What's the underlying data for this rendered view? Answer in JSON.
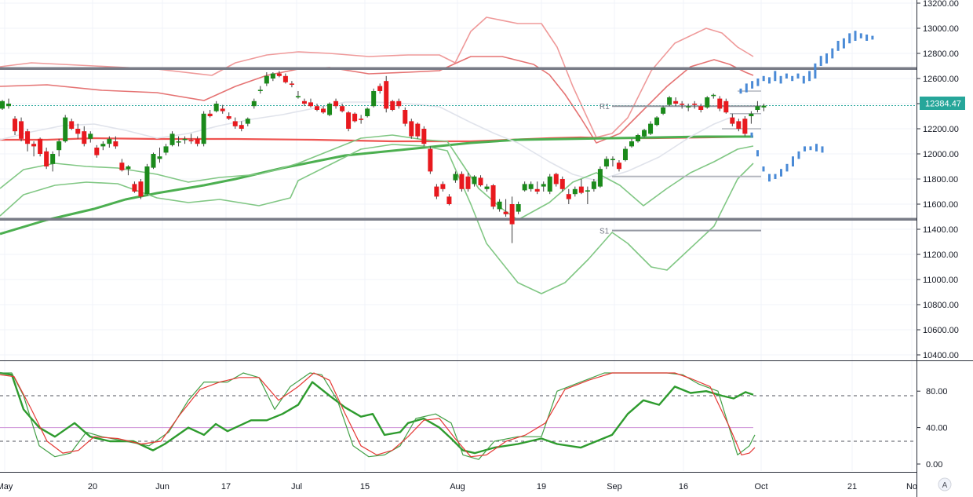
{
  "chart_data": {
    "type": "candlestick",
    "price_axis": {
      "min": 10400,
      "max": 13200,
      "ticks": [
        13200,
        13000,
        12800,
        12600,
        12400,
        12200,
        12000,
        11800,
        11600,
        11400,
        11200,
        11000,
        10800,
        10600,
        10400
      ]
    },
    "oscillator_axis": {
      "min": 0,
      "max": 100,
      "ticks": [
        80,
        40,
        0
      ],
      "upper_band": 75,
      "mid_line": 40,
      "lower_band": 25
    },
    "x_labels": [
      "May",
      "20",
      "Jun",
      "17",
      "Jul",
      "15",
      "Aug",
      "19",
      "Sep",
      "16",
      "Oct",
      "21",
      "No"
    ],
    "last_price": "12384.47",
    "horizontal_levels": [
      12680,
      11480
    ],
    "pivot_levels": [
      {
        "label": "R1",
        "value": 12380
      },
      {
        "label": "S1",
        "value": 11390
      }
    ],
    "candles": [
      [
        12360,
        12430,
        12350,
        12420
      ],
      [
        12380,
        12440,
        12360,
        12400
      ],
      [
        12280,
        12300,
        12150,
        12180
      ],
      [
        12260,
        12290,
        12100,
        12120
      ],
      [
        12180,
        12200,
        12020,
        12080
      ],
      [
        12080,
        12100,
        11980,
        12060
      ],
      [
        12120,
        12130,
        11980,
        12000
      ],
      [
        12020,
        12050,
        11880,
        11900
      ],
      [
        11920,
        12020,
        11860,
        12000
      ],
      [
        12030,
        12120,
        11980,
        12100
      ],
      [
        12100,
        12310,
        12090,
        12290
      ],
      [
        12260,
        12280,
        12190,
        12200
      ],
      [
        12200,
        12240,
        12120,
        12160
      ],
      [
        12180,
        12220,
        12060,
        12080
      ],
      [
        12120,
        12180,
        12090,
        12160
      ],
      [
        12050,
        12070,
        11970,
        11990
      ],
      [
        12060,
        12100,
        12030,
        12080
      ],
      [
        12080,
        12140,
        12050,
        12120
      ],
      [
        12100,
        12140,
        12040,
        12060
      ],
      [
        11930,
        11960,
        11860,
        11870
      ],
      [
        11880,
        11910,
        11830,
        11900
      ],
      [
        11760,
        11780,
        11690,
        11700
      ],
      [
        11780,
        11800,
        11640,
        11660
      ],
      [
        11680,
        11920,
        11670,
        11900
      ],
      [
        11890,
        12010,
        11880,
        12000
      ],
      [
        11960,
        12050,
        11930,
        11980
      ],
      [
        12010,
        12080,
        11990,
        12060
      ],
      [
        12070,
        12180,
        12060,
        12160
      ],
      [
        12090,
        12140,
        12060,
        12100
      ],
      [
        12110,
        12140,
        12080,
        12120
      ],
      [
        12110,
        12160,
        12080,
        12100
      ],
      [
        12120,
        12140,
        12060,
        12080
      ],
      [
        12080,
        12340,
        12060,
        12320
      ],
      [
        12320,
        12350,
        12290,
        12300
      ],
      [
        12340,
        12420,
        12330,
        12400
      ],
      [
        12360,
        12390,
        12320,
        12340
      ],
      [
        12300,
        12330,
        12270,
        12280
      ],
      [
        12260,
        12290,
        12200,
        12220
      ],
      [
        12230,
        12260,
        12180,
        12200
      ],
      [
        12240,
        12290,
        12220,
        12280
      ],
      [
        12380,
        12440,
        12360,
        12420
      ],
      [
        12500,
        12540,
        12480,
        12510
      ],
      [
        12560,
        12650,
        12540,
        12620
      ],
      [
        12600,
        12650,
        12580,
        12640
      ],
      [
        12640,
        12660,
        12610,
        12620
      ],
      [
        12620,
        12640,
        12560,
        12570
      ],
      [
        12560,
        12580,
        12530,
        12550
      ],
      [
        12450,
        12500,
        12440,
        12460
      ],
      [
        12420,
        12440,
        12380,
        12400
      ],
      [
        12410,
        12440,
        12370,
        12380
      ],
      [
        12380,
        12400,
        12340,
        12350
      ],
      [
        12360,
        12380,
        12320,
        12330
      ],
      [
        12310,
        12410,
        12300,
        12400
      ],
      [
        12420,
        12440,
        12360,
        12380
      ],
      [
        12380,
        12400,
        12330,
        12340
      ],
      [
        12330,
        12340,
        12180,
        12200
      ],
      [
        12320,
        12330,
        12250,
        12260
      ],
      [
        12280,
        12310,
        12240,
        12270
      ],
      [
        12300,
        12370,
        12290,
        12360
      ],
      [
        12380,
        12520,
        12370,
        12500
      ],
      [
        12540,
        12560,
        12480,
        12500
      ],
      [
        12580,
        12620,
        12330,
        12360
      ],
      [
        12420,
        12430,
        12340,
        12350
      ],
      [
        12420,
        12440,
        12360,
        12380
      ],
      [
        12350,
        12370,
        12220,
        12240
      ],
      [
        12260,
        12280,
        12120,
        12140
      ],
      [
        12240,
        12250,
        12120,
        12140
      ],
      [
        12200,
        12220,
        12060,
        12080
      ],
      [
        12040,
        12060,
        11840,
        11860
      ],
      [
        11740,
        11760,
        11640,
        11660
      ],
      [
        11760,
        11780,
        11700,
        11720
      ],
      [
        11660,
        11680,
        11590,
        11600
      ],
      [
        11790,
        11860,
        11770,
        11840
      ],
      [
        11840,
        11860,
        11700,
        11720
      ],
      [
        11820,
        11850,
        11700,
        11720
      ],
      [
        11760,
        11830,
        11740,
        11820
      ],
      [
        11810,
        11830,
        11740,
        11750
      ],
      [
        11720,
        11760,
        11700,
        11740
      ],
      [
        11750,
        11760,
        11560,
        11580
      ],
      [
        11560,
        11640,
        11540,
        11620
      ],
      [
        11540,
        11640,
        11500,
        11520
      ],
      [
        11600,
        11660,
        11290,
        11440
      ],
      [
        11540,
        11620,
        11520,
        11600
      ],
      [
        11710,
        11780,
        11700,
        11760
      ],
      [
        11720,
        11780,
        11700,
        11760
      ],
      [
        11720,
        11780,
        11680,
        11700
      ],
      [
        11740,
        11780,
        11700,
        11760
      ],
      [
        11700,
        11840,
        11680,
        11820
      ],
      [
        11840,
        11850,
        11740,
        11760
      ],
      [
        11800,
        11820,
        11700,
        11720
      ],
      [
        11680,
        11720,
        11600,
        11640
      ],
      [
        11680,
        11740,
        11660,
        11720
      ],
      [
        11740,
        11800,
        11680,
        11690
      ],
      [
        11700,
        11740,
        11600,
        11710
      ],
      [
        11720,
        11800,
        11700,
        11780
      ],
      [
        11740,
        11900,
        11730,
        11880
      ],
      [
        11900,
        11980,
        11880,
        11960
      ],
      [
        11950,
        11980,
        11900,
        11960
      ],
      [
        11930,
        11950,
        11860,
        11880
      ],
      [
        11950,
        12060,
        11940,
        12040
      ],
      [
        12060,
        12120,
        12050,
        12100
      ],
      [
        12100,
        12160,
        12090,
        12150
      ],
      [
        12140,
        12200,
        12130,
        12190
      ],
      [
        12160,
        12260,
        12150,
        12240
      ],
      [
        12230,
        12300,
        12220,
        12290
      ],
      [
        12320,
        12380,
        12310,
        12370
      ],
      [
        12390,
        12460,
        12380,
        12450
      ],
      [
        12420,
        12450,
        12380,
        12400
      ],
      [
        12400,
        12420,
        12360,
        12390
      ],
      [
        12370,
        12400,
        12340,
        12380
      ],
      [
        12400,
        12420,
        12360,
        12390
      ],
      [
        12380,
        12400,
        12330,
        12350
      ],
      [
        12370,
        12460,
        12360,
        12450
      ],
      [
        12460,
        12480,
        12440,
        12470
      ],
      [
        12440,
        12460,
        12340,
        12360
      ],
      [
        12420,
        12440,
        12320,
        12330
      ],
      [
        12290,
        12320,
        12220,
        12240
      ],
      [
        12260,
        12280,
        12180,
        12200
      ],
      [
        12280,
        12300,
        12140,
        12160
      ],
      [
        12300,
        12340,
        12240,
        12320
      ],
      [
        12350,
        12420,
        12330,
        12380
      ],
      [
        12370,
        12400,
        12340,
        12384
      ]
    ],
    "forecast_projection": [
      [
        12480,
        12520
      ],
      [
        12490,
        12560
      ],
      [
        12520,
        12580
      ],
      [
        12540,
        12600
      ],
      [
        12580,
        12620
      ],
      [
        12560,
        12610
      ],
      [
        12580,
        12660
      ],
      [
        12560,
        12620
      ],
      [
        12600,
        12640
      ],
      [
        12580,
        12620
      ],
      [
        12600,
        12640
      ],
      [
        12560,
        12620
      ],
      [
        12580,
        12660
      ],
      [
        12600,
        12720
      ],
      [
        12700,
        12780
      ],
      [
        12720,
        12800
      ],
      [
        12760,
        12840
      ],
      [
        12820,
        12900
      ],
      [
        12840,
        12920
      ],
      [
        12880,
        12960
      ],
      [
        12900,
        12980
      ],
      [
        12920,
        12960
      ],
      [
        12900,
        12950
      ],
      [
        12910,
        12940
      ],
      [
        12130,
        12170
      ],
      [
        11980,
        12030
      ],
      [
        11860,
        11900
      ],
      [
        11780,
        11840
      ],
      [
        11800,
        11840
      ],
      [
        11820,
        11880
      ],
      [
        11860,
        11920
      ],
      [
        11900,
        11980
      ],
      [
        11960,
        12020
      ],
      [
        12020,
        12060
      ],
      [
        12030,
        12060
      ],
      [
        12020,
        12080
      ],
      [
        12010,
        12060
      ]
    ]
  }
}
